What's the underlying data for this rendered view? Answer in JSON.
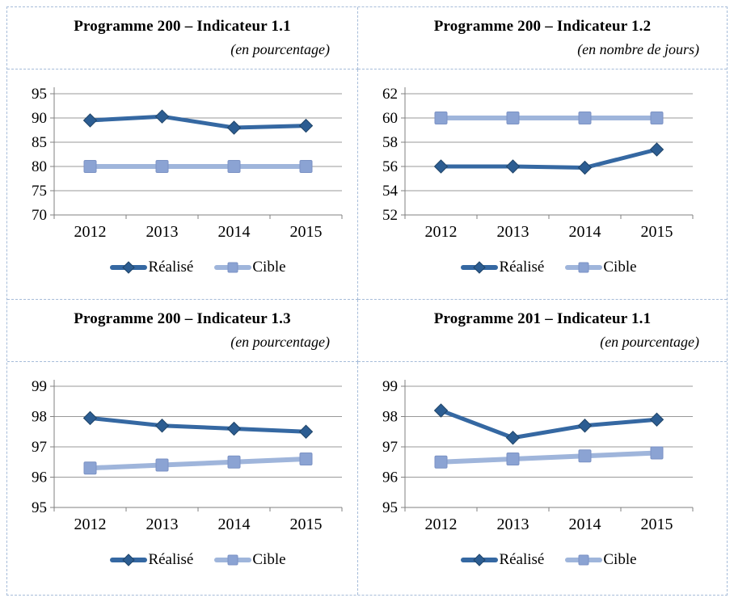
{
  "style": {
    "background": "#ffffff",
    "panel_border_color": "#a6bcd9",
    "grid_color": "#999999",
    "axis_color": "#808080",
    "realise_color": "#3568a2",
    "cible_color": "#9fb5db",
    "text_color": "#000000"
  },
  "chart_data": [
    {
      "type": "line",
      "title": "Programme 200 – Indicateur 1.1",
      "subtitle": "(en pourcentage)",
      "categories": [
        "2012",
        "2013",
        "2014",
        "2015"
      ],
      "series": [
        {
          "name": "Réalisé",
          "values": [
            89.5,
            90.3,
            88.0,
            88.4
          ],
          "color": "#3568a2",
          "width": 5,
          "marker": "diamond",
          "marker_color": "#2c5d92",
          "marker_stroke": "#1f4468"
        },
        {
          "name": "Cible",
          "values": [
            80,
            80,
            80,
            80
          ],
          "color": "#9fb5db",
          "width": 6,
          "marker": "square",
          "marker_color": "#8ba3d3",
          "marker_stroke": "#7b92c4"
        }
      ],
      "ylim": [
        70,
        95
      ],
      "yticks": [
        70,
        75,
        80,
        85,
        90,
        95
      ],
      "grid": true,
      "legend_position": "bottom"
    },
    {
      "type": "line",
      "title": "Programme 200 – Indicateur 1.2",
      "subtitle": "(en nombre de jours)",
      "categories": [
        "2012",
        "2013",
        "2014",
        "2015"
      ],
      "series": [
        {
          "name": "Réalisé",
          "values": [
            56,
            56,
            55.9,
            57.4
          ],
          "color": "#3568a2",
          "width": 5,
          "marker": "diamond",
          "marker_color": "#2c5d92",
          "marker_stroke": "#1f4468"
        },
        {
          "name": "Cible",
          "values": [
            60,
            60,
            60,
            60
          ],
          "color": "#9fb5db",
          "width": 6,
          "marker": "square",
          "marker_color": "#8ba3d3",
          "marker_stroke": "#7b92c4"
        }
      ],
      "ylim": [
        52,
        62
      ],
      "yticks": [
        52,
        54,
        56,
        58,
        60,
        62
      ],
      "grid": true,
      "legend_position": "bottom"
    },
    {
      "type": "line",
      "title": "Programme 200 – Indicateur 1.3",
      "subtitle": "(en pourcentage)",
      "categories": [
        "2012",
        "2013",
        "2014",
        "2015"
      ],
      "series": [
        {
          "name": "Réalisé",
          "values": [
            97.95,
            97.7,
            97.6,
            97.5
          ],
          "color": "#3568a2",
          "width": 5,
          "marker": "diamond",
          "marker_color": "#2c5d92",
          "marker_stroke": "#1f4468"
        },
        {
          "name": "Cible",
          "values": [
            96.3,
            96.4,
            96.5,
            96.6
          ],
          "color": "#9fb5db",
          "width": 6,
          "marker": "square",
          "marker_color": "#8ba3d3",
          "marker_stroke": "#7b92c4"
        }
      ],
      "ylim": [
        95,
        99
      ],
      "yticks": [
        95,
        96,
        97,
        98,
        99
      ],
      "grid": true,
      "legend_position": "bottom"
    },
    {
      "type": "line",
      "title": "Programme 201 – Indicateur 1.1",
      "subtitle": "(en pourcentage)",
      "categories": [
        "2012",
        "2013",
        "2014",
        "2015"
      ],
      "series": [
        {
          "name": "Réalisé",
          "values": [
            98.2,
            97.3,
            97.7,
            97.9
          ],
          "color": "#3568a2",
          "width": 5,
          "marker": "diamond",
          "marker_color": "#2c5d92",
          "marker_stroke": "#1f4468"
        },
        {
          "name": "Cible",
          "values": [
            96.5,
            96.6,
            96.7,
            96.8
          ],
          "color": "#9fb5db",
          "width": 6,
          "marker": "square",
          "marker_color": "#8ba3d3",
          "marker_stroke": "#7b92c4"
        }
      ],
      "ylim": [
        95,
        99
      ],
      "yticks": [
        95,
        96,
        97,
        98,
        99
      ],
      "grid": true,
      "legend_position": "bottom"
    }
  ]
}
